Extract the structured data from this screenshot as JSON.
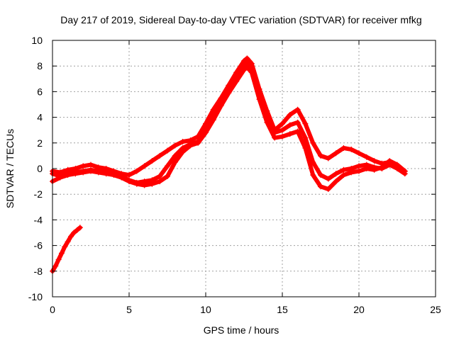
{
  "chart_data": {
    "type": "scatter",
    "title": "Day 217 of 2019, Sidereal Day-to-day VTEC variation (SDTVAR) for receiver mfkg",
    "xlabel": "GPS time / hours",
    "ylabel": "SDTVAR / TECUs",
    "xlim": [
      0,
      25
    ],
    "ylim": [
      -10,
      10
    ],
    "xticks": [
      0,
      5,
      10,
      15,
      20,
      25
    ],
    "yticks": [
      -10,
      -8,
      -6,
      -4,
      -2,
      0,
      2,
      4,
      6,
      8,
      10
    ],
    "grid": true,
    "legend": "none",
    "marker": "+",
    "series": [
      {
        "name": "track-a",
        "color": "#ff0000",
        "x": [
          0.0,
          0.5,
          1.0,
          1.5,
          2.0,
          2.5,
          3.0,
          3.5,
          4.0,
          4.5,
          5.0,
          5.5,
          6.0,
          6.5,
          7.0,
          7.5,
          8.0,
          8.5,
          9.0,
          9.5,
          10.0,
          10.5,
          11.0,
          11.5,
          12.0,
          12.5,
          12.7,
          13.0,
          13.5,
          14.0,
          14.5,
          15.0,
          15.5,
          16.0,
          16.5,
          17.0,
          17.5,
          18.0,
          18.5,
          19.0,
          19.5,
          20.0,
          20.5,
          21.0,
          21.5,
          22.0,
          22.5,
          23.0
        ],
        "y": [
          -0.2,
          -0.3,
          -0.1,
          0.0,
          0.2,
          0.3,
          0.1,
          0.0,
          -0.2,
          -0.4,
          -0.5,
          -0.2,
          0.2,
          0.6,
          1.0,
          1.4,
          1.8,
          2.1,
          2.2,
          2.5,
          3.5,
          4.6,
          5.5,
          6.5,
          7.5,
          8.4,
          8.6,
          8.2,
          6.2,
          4.5,
          3.0,
          3.5,
          4.2,
          4.6,
          3.5,
          2.0,
          1.0,
          0.8,
          1.2,
          1.6,
          1.5,
          1.2,
          0.9,
          0.6,
          0.4,
          0.5,
          0.2,
          -0.2
        ]
      },
      {
        "name": "track-b",
        "color": "#ff0000",
        "x": [
          0.0,
          0.5,
          1.0,
          1.5,
          2.0,
          2.5,
          3.0,
          3.5,
          4.0,
          4.5,
          5.0,
          5.5,
          6.0,
          6.5,
          7.0,
          7.5,
          8.0,
          8.5,
          9.0,
          9.5,
          10.0,
          10.5,
          11.0,
          11.5,
          12.0,
          12.5,
          12.7,
          13.0,
          13.5,
          14.0,
          14.5,
          15.0,
          15.5,
          16.0,
          16.5,
          17.0,
          17.5,
          18.0,
          18.5,
          19.0,
          19.5,
          20.0,
          20.5,
          21.0,
          21.5,
          22.0,
          22.5,
          23.0
        ],
        "y": [
          -0.4,
          -0.6,
          -0.4,
          -0.3,
          -0.2,
          -0.1,
          -0.2,
          -0.3,
          -0.4,
          -0.6,
          -0.9,
          -1.1,
          -1.0,
          -0.9,
          -0.6,
          0.2,
          1.0,
          1.6,
          1.9,
          2.1,
          3.0,
          4.1,
          5.2,
          6.2,
          7.1,
          8.0,
          8.3,
          7.8,
          5.8,
          4.0,
          2.8,
          3.0,
          3.4,
          3.6,
          2.4,
          0.5,
          -0.5,
          -0.8,
          -0.4,
          -0.1,
          0.0,
          0.2,
          0.3,
          0.1,
          0.0,
          0.3,
          0.0,
          -0.4
        ]
      },
      {
        "name": "track-c",
        "color": "#ff0000",
        "x": [
          0.0,
          0.5,
          1.0,
          1.5,
          2.0,
          2.5,
          3.0,
          3.5,
          4.0,
          4.5,
          5.0,
          5.5,
          6.0,
          6.5,
          7.0,
          7.5,
          8.0,
          8.5,
          9.0,
          9.5,
          10.0,
          10.5,
          11.0,
          11.5,
          12.0,
          12.5,
          12.7,
          13.0,
          13.5,
          14.0,
          14.5,
          15.0,
          15.5,
          16.0,
          16.5,
          17.0,
          17.5,
          18.0,
          18.5,
          19.0,
          19.5,
          20.0,
          20.5,
          21.0,
          21.5,
          22.0,
          22.5,
          23.0
        ],
        "y": [
          -1.0,
          -0.7,
          -0.5,
          -0.4,
          -0.3,
          -0.2,
          -0.3,
          -0.4,
          -0.5,
          -0.7,
          -1.0,
          -1.2,
          -1.3,
          -1.2,
          -1.0,
          -0.6,
          0.5,
          1.3,
          1.8,
          2.0,
          2.8,
          3.8,
          4.9,
          5.9,
          6.8,
          7.7,
          7.9,
          7.5,
          5.4,
          3.6,
          2.4,
          2.5,
          2.7,
          2.9,
          1.6,
          -0.5,
          -1.4,
          -1.6,
          -1.0,
          -0.5,
          -0.3,
          -0.2,
          0.0,
          -0.1,
          0.1,
          0.6,
          0.3,
          -0.2
        ]
      },
      {
        "name": "track-d",
        "color": "#ff0000",
        "x": [
          0.0,
          0.2,
          0.4,
          0.6,
          0.8,
          1.0,
          1.2,
          1.4,
          1.6,
          1.8
        ],
        "y": [
          -8.0,
          -7.6,
          -7.1,
          -6.6,
          -6.1,
          -5.7,
          -5.3,
          -5.0,
          -4.8,
          -4.6
        ]
      }
    ]
  }
}
